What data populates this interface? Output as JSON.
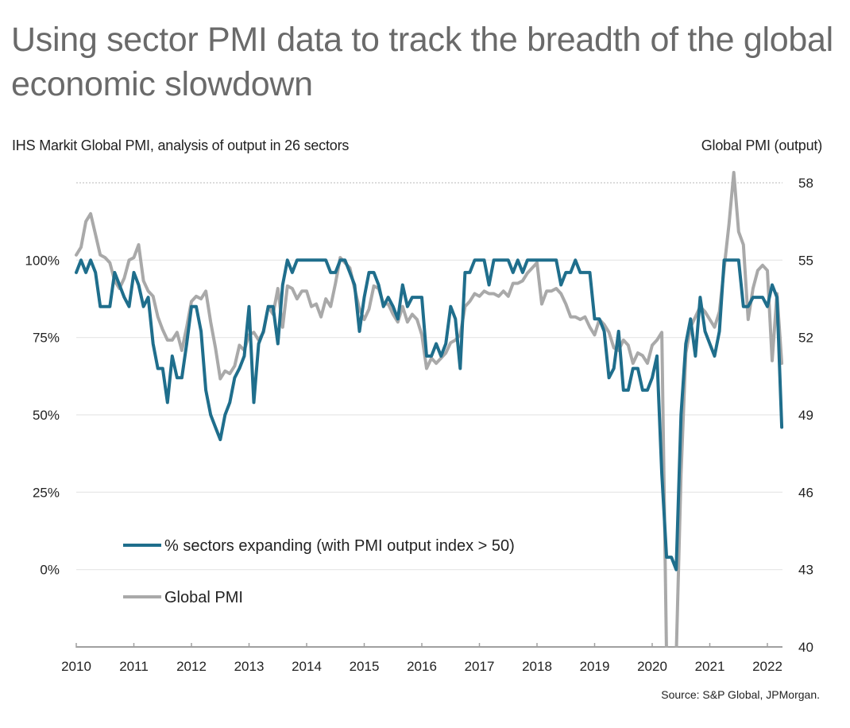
{
  "header": {
    "title": "Using sector PMI data to track the breadth of the global economic slowdown",
    "subtitle_left": "IHS Markit Global PMI, analysis of output in 26 sectors",
    "subtitle_right": "Global PMI (output)",
    "source": "Source: S&P Global, JPMorgan."
  },
  "chart_data": {
    "type": "line",
    "title": "Using sector PMI data to track the breadth of the global economic slowdown",
    "subtitle": "IHS Markit Global PMI, analysis of output in 26 sectors",
    "xlabel": "",
    "ylabel_left": "",
    "ylabel_right": "Global PMI (output)",
    "x_start": "2010-01",
    "x_frequency": "monthly",
    "x_ticks": [
      "2010",
      "2011",
      "2012",
      "2013",
      "2014",
      "2015",
      "2016",
      "2017",
      "2018",
      "2019",
      "2020",
      "2021",
      "2022"
    ],
    "ylim_left": [
      -25,
      125
    ],
    "yticks_left": [
      0,
      25,
      50,
      75,
      100
    ],
    "yticks_left_labels": [
      "0%",
      "25%",
      "50%",
      "75%",
      "100%"
    ],
    "ylim_right": [
      40,
      58
    ],
    "yticks_right": [
      40,
      43,
      46,
      49,
      52,
      55,
      58
    ],
    "yticks_right_labels": [
      "40",
      "43",
      "46",
      "49",
      "52",
      "55",
      "58"
    ],
    "grid": "horizontal",
    "legend": "bottom-left",
    "colors": {
      "sectors": "#1f6e8c",
      "pmi": "#a9a9a9",
      "grid": "#e6e6e6",
      "axis": "#a0a0a0"
    },
    "series": [
      {
        "name": "% sectors expanding (with PMI output index > 50)",
        "axis": "left",
        "values": [
          96,
          100,
          96,
          100,
          96,
          85,
          85,
          85,
          96,
          92,
          88,
          85,
          96,
          92,
          85,
          88,
          73,
          65,
          65,
          54,
          69,
          62,
          62,
          73,
          85,
          85,
          77,
          58,
          50,
          46,
          42,
          50,
          54,
          62,
          65,
          69,
          85,
          54,
          73,
          77,
          85,
          85,
          73,
          92,
          100,
          96,
          100,
          100,
          100,
          100,
          100,
          100,
          100,
          96,
          96,
          100,
          100,
          96,
          92,
          77,
          88,
          96,
          96,
          92,
          85,
          88,
          85,
          81,
          92,
          85,
          88,
          88,
          88,
          69,
          69,
          73,
          69,
          73,
          85,
          81,
          65,
          96,
          96,
          100,
          100,
          100,
          92,
          100,
          100,
          100,
          100,
          96,
          100,
          96,
          100,
          100,
          100,
          100,
          100,
          100,
          100,
          92,
          96,
          96,
          100,
          96,
          96,
          96,
          81,
          81,
          77,
          62,
          65,
          77,
          58,
          58,
          65,
          65,
          58,
          58,
          62,
          69,
          31,
          4,
          4,
          0,
          50,
          73,
          81,
          69,
          88,
          77,
          73,
          69,
          77,
          100,
          100,
          100,
          100,
          85,
          85,
          88,
          88,
          88,
          85,
          92,
          88,
          46
        ]
      },
      {
        "name": "Global PMI",
        "axis": "right",
        "values": [
          55.2,
          55.5,
          56.5,
          56.8,
          56.0,
          55.2,
          55.1,
          54.9,
          54.2,
          53.9,
          54.3,
          55.0,
          55.1,
          55.6,
          54.2,
          53.8,
          53.6,
          52.8,
          52.3,
          51.9,
          51.9,
          52.2,
          51.5,
          52.4,
          53.4,
          53.6,
          53.5,
          53.8,
          52.6,
          51.6,
          50.4,
          50.7,
          50.6,
          50.9,
          51.7,
          51.5,
          52.1,
          52.2,
          51.9,
          52.2,
          53.2,
          52.9,
          53.9,
          52.4,
          54.0,
          53.9,
          53.5,
          53.8,
          53.8,
          53.2,
          53.3,
          52.8,
          53.5,
          53.2,
          54.1,
          55.1,
          54.9,
          54.7,
          53.9,
          53.1,
          52.7,
          53.1,
          54.0,
          53.9,
          53.3,
          53.3,
          52.9,
          52.6,
          53.2,
          52.6,
          52.9,
          52.7,
          52.1,
          50.8,
          51.2,
          51.0,
          51.2,
          51.4,
          51.8,
          51.9,
          52.1,
          53.2,
          53.4,
          53.7,
          53.6,
          53.8,
          53.7,
          53.7,
          53.6,
          53.8,
          53.6,
          54.1,
          54.1,
          54.2,
          54.5,
          54.7,
          54.9,
          53.3,
          53.8,
          53.8,
          53.9,
          53.7,
          53.3,
          52.8,
          52.8,
          52.7,
          52.8,
          52.4,
          52.1,
          52.7,
          52.5,
          52.2,
          51.6,
          51.5,
          51.9,
          51.7,
          51.0,
          51.4,
          51.3,
          51.0,
          51.7,
          51.9,
          52.2,
          39.6,
          39.6,
          39.6,
          46.7,
          51.4,
          52.4,
          52.8,
          53.2,
          53.0,
          52.7,
          52.4,
          53.0,
          54.7,
          56.4,
          58.4,
          56.1,
          55.6,
          52.7,
          53.9,
          54.6,
          54.8,
          54.6,
          51.1,
          53.7,
          51.0
        ]
      }
    ]
  }
}
